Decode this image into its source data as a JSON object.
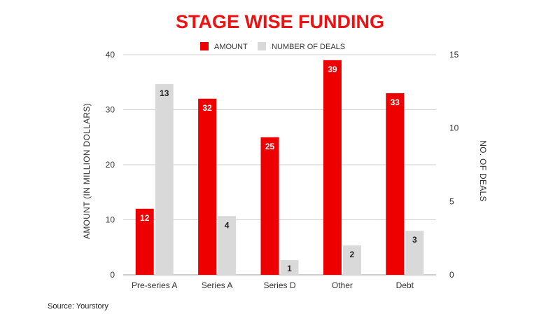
{
  "chart_data": {
    "type": "bar",
    "title": "STAGE WISE FUNDING",
    "categories": [
      "Pre-series A",
      "Series A",
      "Series D",
      "Other",
      "Debt"
    ],
    "series": [
      {
        "name": "AMOUNT",
        "axis": "left",
        "values": [
          12,
          32,
          25,
          39,
          33
        ],
        "color": "#ee0000",
        "label_color": "#ffffff"
      },
      {
        "name": "NUMBER OF DEALS",
        "axis": "right",
        "values": [
          13,
          4,
          1,
          2,
          3
        ],
        "color": "#d9d9d9",
        "label_color": "#222222"
      }
    ],
    "ylabel": "AMOUNT (IN MILLION DOLLARS)",
    "y2label": "NO. OF DEALS",
    "ylim": [
      0,
      40
    ],
    "y2lim": [
      0,
      15
    ],
    "yticks": [
      0,
      10,
      20,
      30,
      40
    ],
    "y2ticks": [
      0,
      5,
      10,
      15
    ],
    "grid": true,
    "legend_position": "top-center"
  },
  "source_note": "Source: Yourstory"
}
